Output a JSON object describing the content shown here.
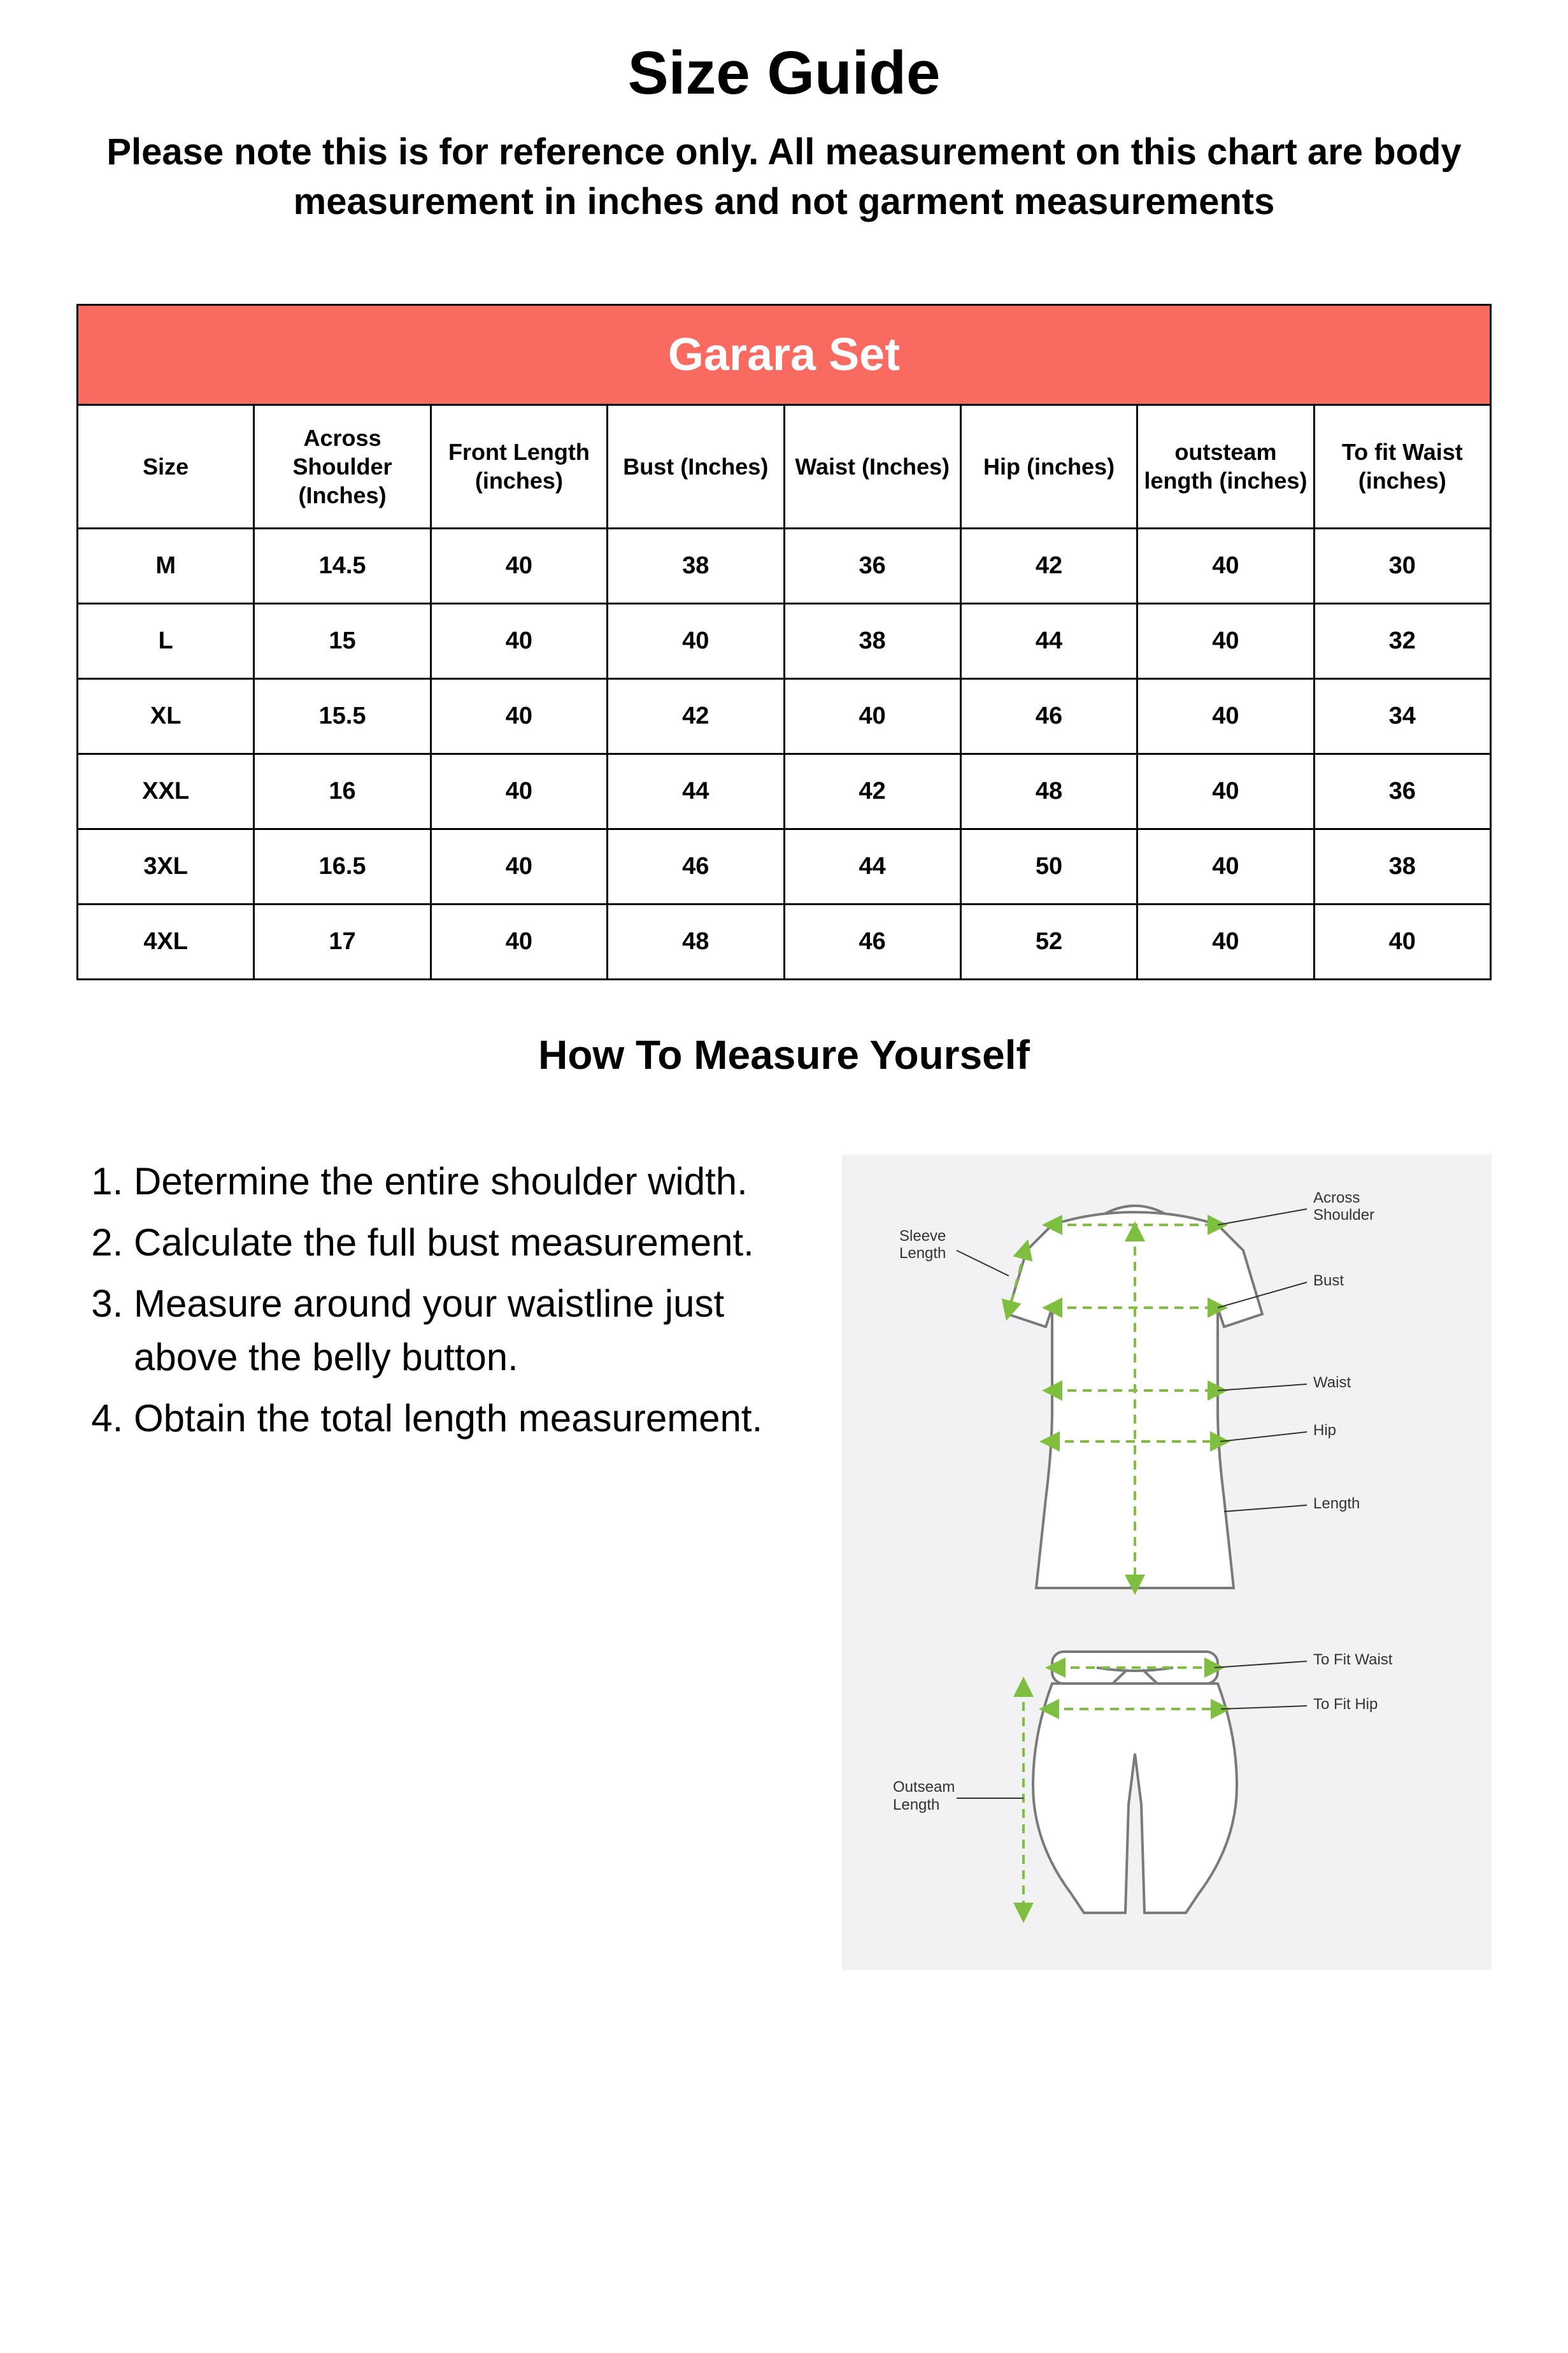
{
  "title": "Size Guide",
  "subtitle": "Please note this is for reference only. All measurement on this chart are body measurement in inches and not garment measurements",
  "table": {
    "set_name": "Garara Set",
    "header_bg": "#f96a61",
    "header_fg": "#ffffff",
    "border_color": "#000000",
    "columns": [
      "Size",
      "Across Shoulder (Inches)",
      "Front Length (inches)",
      "Bust (Inches)",
      "Waist (Inches)",
      "Hip (inches)",
      "outsteam length (inches)",
      "To fit Waist (inches)"
    ],
    "rows": [
      [
        "M",
        "14.5",
        "40",
        "38",
        "36",
        "42",
        "40",
        "30"
      ],
      [
        "L",
        "15",
        "40",
        "40",
        "38",
        "44",
        "40",
        "32"
      ],
      [
        "XL",
        "15.5",
        "40",
        "42",
        "40",
        "46",
        "40",
        "34"
      ],
      [
        "XXL",
        "16",
        "40",
        "44",
        "42",
        "48",
        "40",
        "36"
      ],
      [
        "3XL",
        "16.5",
        "40",
        "46",
        "44",
        "50",
        "40",
        "38"
      ],
      [
        "4XL",
        "17",
        "40",
        "48",
        "46",
        "52",
        "40",
        "40"
      ]
    ]
  },
  "howto": {
    "title": "How To Measure Yourself",
    "steps": [
      "Determine the entire shoulder width.",
      "Calculate the full bust measurement.",
      "Measure around your waistline just above the belly button.",
      "Obtain the total length measurement."
    ]
  },
  "diagram": {
    "bg": "#f2f2f4",
    "outline": "#7a7a7a",
    "dash": "#7fbf3f",
    "label_color": "#333333",
    "labels": {
      "sleeve": "Sleeve Length",
      "across": "Across Shoulder",
      "bust": "Bust",
      "waist": "Waist",
      "hip": "Hip",
      "length": "Length",
      "fit_waist": "To Fit Waist",
      "fit_hip": "To Fit Hip",
      "outseam": "Outseam Length"
    }
  }
}
